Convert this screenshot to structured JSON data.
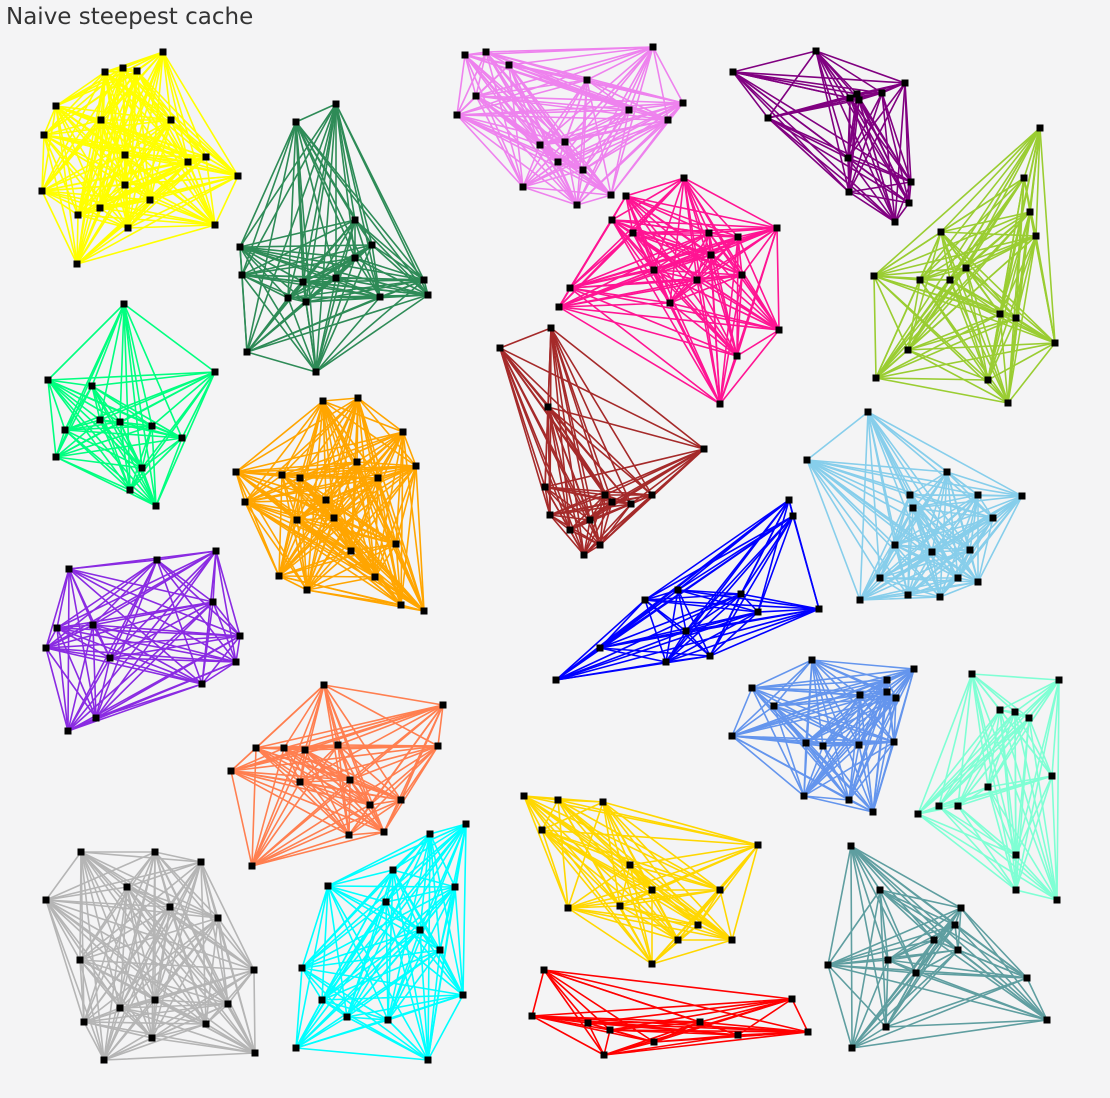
{
  "title": "Naive steepest cache",
  "node_color": "#000000",
  "clusters": [
    {
      "name": "yellow",
      "color": "#ffff00",
      "points": [
        [
          163,
          52
        ],
        [
          238,
          176
        ],
        [
          215,
          225
        ],
        [
          77,
          264
        ],
        [
          42,
          191
        ],
        [
          44,
          135
        ],
        [
          56,
          106
        ],
        [
          105,
          72
        ],
        [
          123,
          68
        ],
        [
          137,
          71
        ],
        [
          101,
          120
        ],
        [
          125,
          155
        ],
        [
          171,
          120
        ],
        [
          188,
          162
        ],
        [
          206,
          157
        ],
        [
          150,
          200
        ],
        [
          128,
          228
        ],
        [
          100,
          208
        ],
        [
          78,
          215
        ],
        [
          125,
          185
        ]
      ]
    },
    {
      "name": "seagreen",
      "color": "#2e8b57",
      "points": [
        [
          336,
          104
        ],
        [
          296,
          122
        ],
        [
          240,
          247
        ],
        [
          247,
          352
        ],
        [
          316,
          372
        ],
        [
          428,
          295
        ],
        [
          424,
          280
        ],
        [
          355,
          220
        ],
        [
          372,
          245
        ],
        [
          380,
          297
        ],
        [
          355,
          258
        ],
        [
          336,
          278
        ],
        [
          306,
          302
        ],
        [
          303,
          282
        ],
        [
          288,
          298
        ],
        [
          242,
          275
        ]
      ]
    },
    {
      "name": "violet",
      "color": "#ee82ee",
      "points": [
        [
          465,
          55
        ],
        [
          486,
          52
        ],
        [
          653,
          47
        ],
        [
          683,
          103
        ],
        [
          668,
          120
        ],
        [
          611,
          195
        ],
        [
          577,
          205
        ],
        [
          523,
          187
        ],
        [
          457,
          115
        ],
        [
          476,
          96
        ],
        [
          509,
          65
        ],
        [
          587,
          80
        ],
        [
          540,
          145
        ],
        [
          565,
          142
        ],
        [
          558,
          162
        ],
        [
          583,
          170
        ],
        [
          629,
          110
        ]
      ]
    },
    {
      "name": "purple",
      "color": "#800080",
      "points": [
        [
          733,
          72
        ],
        [
          816,
          51
        ],
        [
          905,
          83
        ],
        [
          911,
          182
        ],
        [
          909,
          203
        ],
        [
          895,
          222
        ],
        [
          849,
          192
        ],
        [
          848,
          158
        ],
        [
          768,
          118
        ],
        [
          859,
          100
        ],
        [
          857,
          94
        ],
        [
          882,
          93
        ],
        [
          850,
          98
        ]
      ]
    },
    {
      "name": "deeppink",
      "color": "#ff1493",
      "points": [
        [
          684,
          178
        ],
        [
          777,
          228
        ],
        [
          779,
          330
        ],
        [
          720,
          404
        ],
        [
          559,
          307
        ],
        [
          570,
          288
        ],
        [
          626,
          196
        ],
        [
          612,
          220
        ],
        [
          633,
          233
        ],
        [
          709,
          233
        ],
        [
          738,
          237
        ],
        [
          711,
          255
        ],
        [
          742,
          275
        ],
        [
          737,
          356
        ],
        [
          670,
          303
        ],
        [
          697,
          280
        ],
        [
          654,
          270
        ]
      ]
    },
    {
      "name": "yellowgreen",
      "color": "#9acd32",
      "points": [
        [
          1040,
          128
        ],
        [
          1055,
          343
        ],
        [
          1008,
          403
        ],
        [
          876,
          378
        ],
        [
          874,
          276
        ],
        [
          941,
          232
        ],
        [
          1024,
          178
        ],
        [
          1030,
          212
        ],
        [
          1036,
          236
        ],
        [
          966,
          268
        ],
        [
          950,
          280
        ],
        [
          920,
          280
        ],
        [
          1000,
          314
        ],
        [
          1016,
          318
        ],
        [
          908,
          350
        ],
        [
          988,
          380
        ]
      ]
    },
    {
      "name": "springgreen",
      "color": "#00ff7f",
      "points": [
        [
          124,
          304
        ],
        [
          215,
          372
        ],
        [
          182,
          438
        ],
        [
          156,
          506
        ],
        [
          130,
          490
        ],
        [
          56,
          457
        ],
        [
          48,
          380
        ],
        [
          92,
          386
        ],
        [
          65,
          430
        ],
        [
          100,
          420
        ],
        [
          120,
          422
        ],
        [
          152,
          426
        ],
        [
          142,
          468
        ]
      ]
    },
    {
      "name": "orange",
      "color": "#ffa500",
      "points": [
        [
          323,
          401
        ],
        [
          358,
          398
        ],
        [
          403,
          432
        ],
        [
          416,
          466
        ],
        [
          424,
          611
        ],
        [
          401,
          605
        ],
        [
          307,
          590
        ],
        [
          279,
          576
        ],
        [
          245,
          502
        ],
        [
          236,
          472
        ],
        [
          282,
          475
        ],
        [
          300,
          478
        ],
        [
          297,
          520
        ],
        [
          326,
          500
        ],
        [
          334,
          518
        ],
        [
          357,
          462
        ],
        [
          378,
          478
        ],
        [
          351,
          551
        ],
        [
          375,
          577
        ],
        [
          396,
          544
        ]
      ]
    },
    {
      "name": "brown",
      "color": "#a52a2a",
      "points": [
        [
          500,
          348
        ],
        [
          551,
          328
        ],
        [
          704,
          449
        ],
        [
          652,
          495
        ],
        [
          600,
          545
        ],
        [
          584,
          555
        ],
        [
          550,
          515
        ],
        [
          545,
          487
        ],
        [
          548,
          407
        ],
        [
          605,
          495
        ],
        [
          612,
          502
        ],
        [
          631,
          504
        ],
        [
          570,
          530
        ],
        [
          590,
          520
        ]
      ]
    },
    {
      "name": "skyblue",
      "color": "#87ceeb",
      "points": [
        [
          868,
          412
        ],
        [
          1022,
          496
        ],
        [
          978,
          582
        ],
        [
          940,
          597
        ],
        [
          908,
          595
        ],
        [
          860,
          600
        ],
        [
          807,
          460
        ],
        [
          947,
          472
        ],
        [
          978,
          495
        ],
        [
          993,
          518
        ],
        [
          913,
          508
        ],
        [
          910,
          495
        ],
        [
          895,
          545
        ],
        [
          932,
          552
        ],
        [
          970,
          550
        ],
        [
          958,
          578
        ],
        [
          880,
          578
        ]
      ]
    },
    {
      "name": "blueviolet",
      "color": "#8a2be2",
      "points": [
        [
          69,
          569
        ],
        [
          157,
          560
        ],
        [
          216,
          551
        ],
        [
          240,
          636
        ],
        [
          236,
          662
        ],
        [
          202,
          684
        ],
        [
          96,
          718
        ],
        [
          68,
          731
        ],
        [
          46,
          648
        ],
        [
          57,
          628
        ],
        [
          93,
          625
        ],
        [
          213,
          602
        ],
        [
          110,
          658
        ]
      ]
    },
    {
      "name": "blue",
      "color": "#0000ff",
      "points": [
        [
          789,
          500
        ],
        [
          819,
          609
        ],
        [
          793,
          516
        ],
        [
          710,
          656
        ],
        [
          666,
          662
        ],
        [
          556,
          680
        ],
        [
          600,
          648
        ],
        [
          645,
          600
        ],
        [
          678,
          590
        ],
        [
          686,
          631
        ],
        [
          741,
          594
        ],
        [
          758,
          612
        ]
      ]
    },
    {
      "name": "cornflowerblue",
      "color": "#6495ed",
      "points": [
        [
          812,
          660
        ],
        [
          914,
          669
        ],
        [
          873,
          812
        ],
        [
          849,
          800
        ],
        [
          804,
          796
        ],
        [
          732,
          736
        ],
        [
          752,
          688
        ],
        [
          774,
          706
        ],
        [
          860,
          695
        ],
        [
          887,
          692
        ],
        [
          887,
          680
        ],
        [
          896,
          698
        ],
        [
          894,
          742
        ],
        [
          859,
          745
        ],
        [
          823,
          746
        ],
        [
          806,
          743
        ]
      ]
    },
    {
      "name": "aquamarine",
      "color": "#7fffd4",
      "points": [
        [
          972,
          674
        ],
        [
          1059,
          680
        ],
        [
          1057,
          900
        ],
        [
          1016,
          890
        ],
        [
          918,
          814
        ],
        [
          939,
          806
        ],
        [
          958,
          806
        ],
        [
          1000,
          710
        ],
        [
          1015,
          712
        ],
        [
          1029,
          718
        ],
        [
          1052,
          776
        ],
        [
          988,
          787
        ],
        [
          1016,
          855
        ]
      ]
    },
    {
      "name": "coral",
      "color": "#ff7f50",
      "points": [
        [
          324,
          685
        ],
        [
          443,
          705
        ],
        [
          438,
          746
        ],
        [
          401,
          800
        ],
        [
          384,
          832
        ],
        [
          252,
          866
        ],
        [
          231,
          771
        ],
        [
          256,
          748
        ],
        [
          284,
          748
        ],
        [
          305,
          750
        ],
        [
          338,
          745
        ],
        [
          300,
          782
        ],
        [
          350,
          780
        ],
        [
          349,
          835
        ],
        [
          370,
          805
        ]
      ]
    },
    {
      "name": "gold",
      "color": "#ffd700",
      "points": [
        [
          524,
          796
        ],
        [
          558,
          800
        ],
        [
          603,
          802
        ],
        [
          758,
          845
        ],
        [
          732,
          940
        ],
        [
          652,
          964
        ],
        [
          568,
          908
        ],
        [
          542,
          830
        ],
        [
          630,
          865
        ],
        [
          652,
          890
        ],
        [
          620,
          906
        ],
        [
          678,
          940
        ],
        [
          698,
          925
        ],
        [
          720,
          890
        ]
      ]
    },
    {
      "name": "cadetblue",
      "color": "#5f9ea0",
      "points": [
        [
          851,
          846
        ],
        [
          961,
          908
        ],
        [
          1027,
          978
        ],
        [
          1047,
          1020
        ],
        [
          886,
          1027
        ],
        [
          852,
          1048
        ],
        [
          828,
          965
        ],
        [
          880,
          890
        ],
        [
          955,
          925
        ],
        [
          934,
          940
        ],
        [
          888,
          960
        ],
        [
          916,
          973
        ],
        [
          958,
          950
        ]
      ]
    },
    {
      "name": "darkgray",
      "color": "#b5b5b5",
      "points": [
        [
          81,
          852
        ],
        [
          155,
          852
        ],
        [
          201,
          862
        ],
        [
          218,
          918
        ],
        [
          254,
          970
        ],
        [
          255,
          1053
        ],
        [
          104,
          1060
        ],
        [
          84,
          1022
        ],
        [
          46,
          900
        ],
        [
          127,
          887
        ],
        [
          170,
          907
        ],
        [
          155,
          1000
        ],
        [
          228,
          1004
        ],
        [
          206,
          1024
        ],
        [
          120,
          1008
        ],
        [
          80,
          960
        ],
        [
          152,
          1038
        ]
      ]
    },
    {
      "name": "cyan",
      "color": "#00ffff",
      "points": [
        [
          466,
          824
        ],
        [
          430,
          834
        ],
        [
          455,
          887
        ],
        [
          463,
          995
        ],
        [
          428,
          1060
        ],
        [
          296,
          1048
        ],
        [
          302,
          968
        ],
        [
          328,
          886
        ],
        [
          393,
          870
        ],
        [
          386,
          902
        ],
        [
          420,
          930
        ],
        [
          322,
          1000
        ],
        [
          347,
          1017
        ],
        [
          388,
          1020
        ],
        [
          440,
          950
        ]
      ]
    },
    {
      "name": "red",
      "color": "#ff0000",
      "points": [
        [
          544,
          970
        ],
        [
          792,
          999
        ],
        [
          808,
          1032
        ],
        [
          738,
          1035
        ],
        [
          654,
          1042
        ],
        [
          604,
          1055
        ],
        [
          588,
          1023
        ],
        [
          532,
          1016
        ],
        [
          700,
          1022
        ],
        [
          610,
          1030
        ]
      ]
    }
  ]
}
